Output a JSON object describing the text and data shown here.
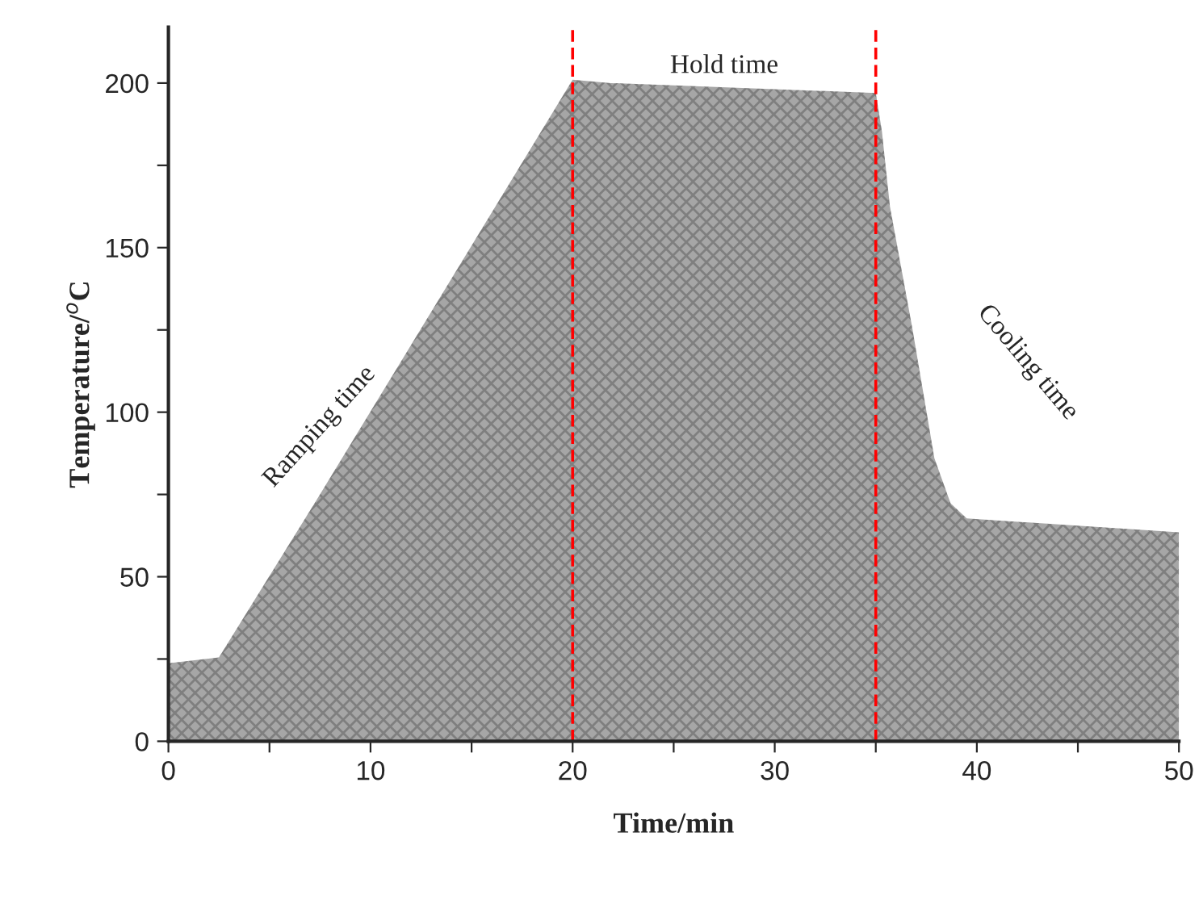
{
  "chart_data": {
    "type": "area",
    "xlabel": "Time/min",
    "ylabel": "Temperature/$^{o}$C",
    "xlim": [
      0,
      50
    ],
    "ylim": [
      0,
      217
    ],
    "xticks": [
      0,
      {
        "value": 5,
        "label": null
      },
      10,
      {
        "value": 15,
        "label": null
      },
      20,
      {
        "value": 25,
        "label": null
      },
      30,
      {
        "value": 35,
        "label": null
      },
      40,
      {
        "value": 45,
        "label": null
      },
      50
    ],
    "yticks": [
      0,
      {
        "value": 25,
        "label": null
      },
      50,
      {
        "value": 75,
        "label": null
      },
      100,
      {
        "value": 125,
        "label": null
      },
      150,
      {
        "value": 175,
        "label": null
      },
      200
    ],
    "grid": false,
    "series": [
      {
        "color": "#a6a6a6",
        "x": [
          0,
          2.5,
          7.3,
          20,
          21.9,
          35,
          35.3,
          35.7,
          36.8,
          37.9,
          38.7,
          39.5,
          50
        ],
        "values": [
          23.7,
          25.5,
          73,
          201,
          200,
          197,
          185.5,
          162.5,
          125.8,
          86,
          72.3,
          67.7,
          63.5
        ]
      }
    ],
    "ref_lines": [
      {
        "axis": "x",
        "value": 20,
        "label": null,
        "color": "#ff0000",
        "line_style": "dashed"
      },
      {
        "axis": "x",
        "value": 35,
        "label": null,
        "color": "#ff0000",
        "line_style": "dashed"
      }
    ],
    "annotations": [
      "Ramping time",
      "Hold time",
      "Cooling time"
    ]
  }
}
